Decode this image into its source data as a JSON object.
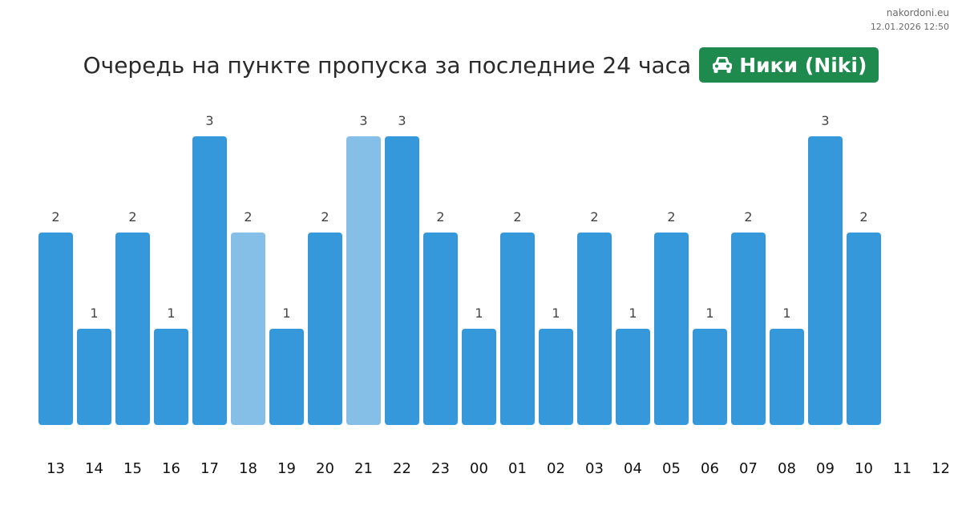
{
  "brand": {
    "site": "nakordoni.eu",
    "datetime": "12.01.2026 12:50"
  },
  "header": {
    "title": "Очередь на пункте пропуска за последние 24 часа",
    "badge_label": "Ники (Niki)",
    "badge_icon": "car-icon",
    "badge_color": "#1e8a4e"
  },
  "colors": {
    "bar": "#3598db",
    "bar_light": "#85bfe8"
  },
  "chart_data": {
    "type": "bar",
    "title": "Очередь на пункте пропуска за последние 24 часа",
    "xlabel": "",
    "ylabel": "",
    "ylim": [
      0,
      3
    ],
    "grid": false,
    "categories": [
      "13",
      "14",
      "15",
      "16",
      "17",
      "18",
      "19",
      "20",
      "21",
      "22",
      "23",
      "00",
      "01",
      "02",
      "03",
      "04",
      "05",
      "06",
      "07",
      "08",
      "09",
      "10",
      "11",
      "12"
    ],
    "values": [
      2,
      1,
      2,
      1,
      3,
      2,
      1,
      2,
      3,
      3,
      2,
      1,
      2,
      1,
      2,
      1,
      2,
      1,
      2,
      1,
      3,
      2,
      null,
      null
    ],
    "highlight_light": [
      "18",
      "21"
    ]
  }
}
